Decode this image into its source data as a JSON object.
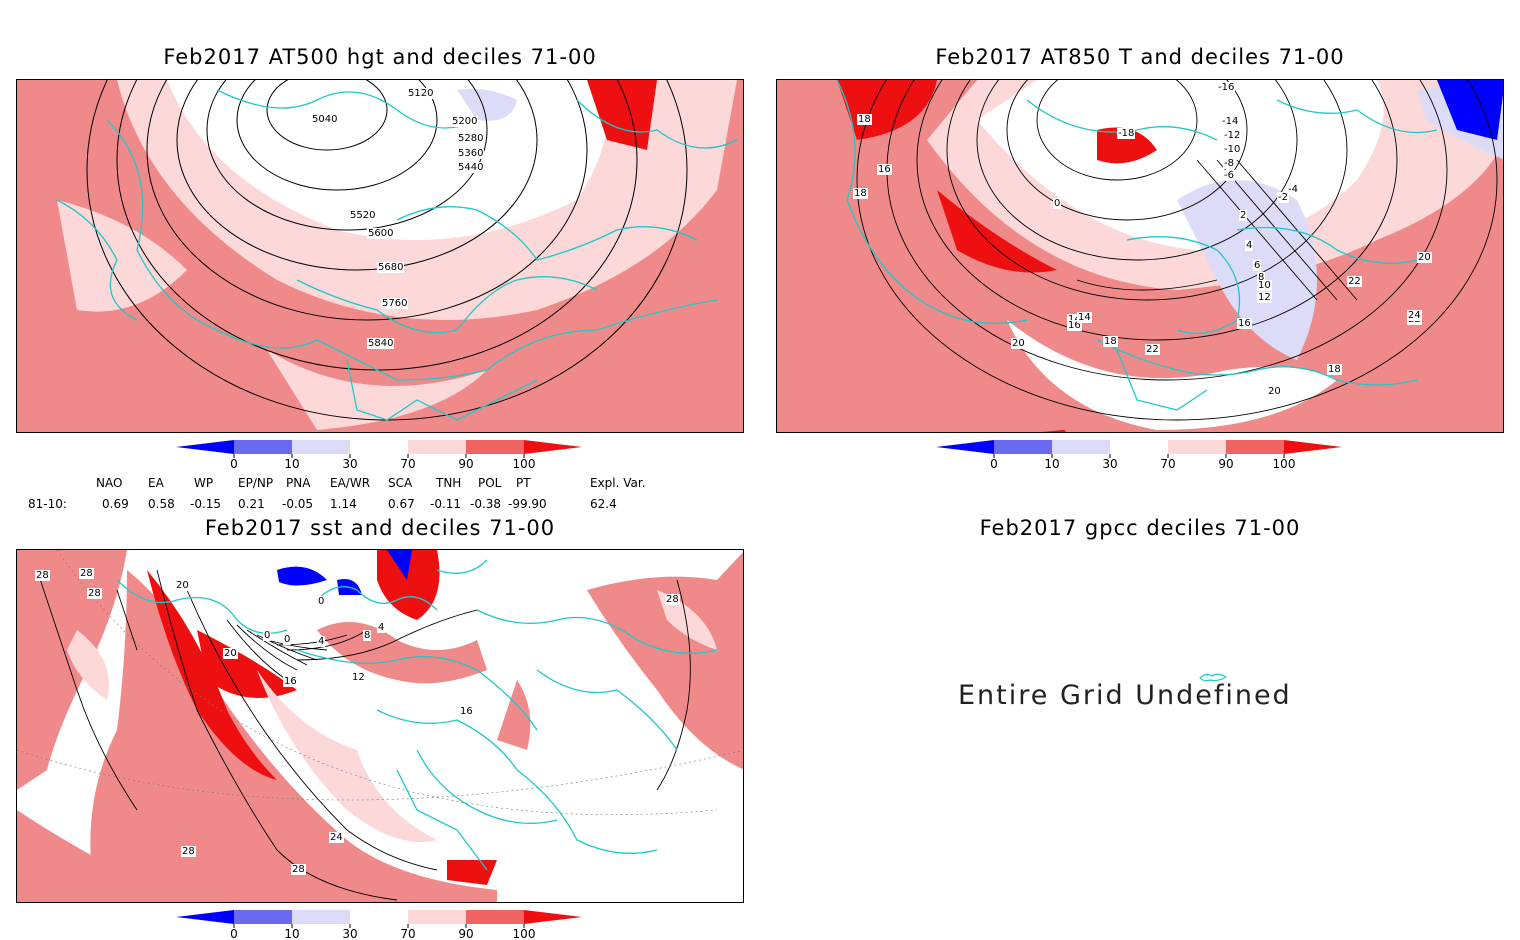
{
  "panels": {
    "hgt": {
      "title": "Feb2017 AT500 hgt and deciles 71-00",
      "contour_labels": [
        "5040",
        "5120",
        "5200",
        "5280",
        "5360",
        "5440",
        "5520",
        "5600",
        "5680",
        "5760",
        "5840"
      ]
    },
    "t850": {
      "title": "Feb2017 AT850 T and deciles 71-00",
      "contour_labels": [
        "18",
        "16",
        "18",
        "-16",
        "-18",
        "-14",
        "-12",
        "-10",
        "-8",
        "-6",
        "-4",
        "-2",
        "0",
        "2",
        "4",
        "6",
        "8",
        "10",
        "12",
        "14",
        "16",
        "18",
        "20",
        "22",
        "24",
        "20",
        "16",
        "14",
        "22",
        "18",
        "20",
        "22"
      ]
    },
    "sst": {
      "title": "Feb2017 sst and deciles 71-00",
      "contour_labels": [
        "28",
        "28",
        "28",
        "20",
        "0",
        "0",
        "0",
        "4",
        "8",
        "4",
        "12",
        "16",
        "20",
        "16",
        "28",
        "24",
        "28",
        "28"
      ]
    },
    "gpcc": {
      "title": "Feb2017 gpcc deciles 71-00",
      "message": "Entire Grid Undefined"
    }
  },
  "colorbar": {
    "ticks": [
      "0",
      "10",
      "30",
      "70",
      "90",
      "100"
    ],
    "colors": [
      "#0000ff",
      "#6a6af0",
      "#dcdcf8",
      "#ffffff",
      "#fcd8d8",
      "#f06464",
      "#ee1010"
    ]
  },
  "indices": {
    "headers": [
      "NAO",
      "EA",
      "WP",
      "EP/NP",
      "PNA",
      "EA/WR",
      "SCA",
      "TNH",
      "POL",
      "PT",
      "Expl. Var."
    ],
    "row_label": "81-10:",
    "values": [
      "0.69",
      "0.58",
      "-0.15",
      "0.21",
      "-0.05",
      "1.14",
      "0.67",
      "-0.11",
      "-0.38",
      "-99.90",
      "62.4"
    ]
  }
}
